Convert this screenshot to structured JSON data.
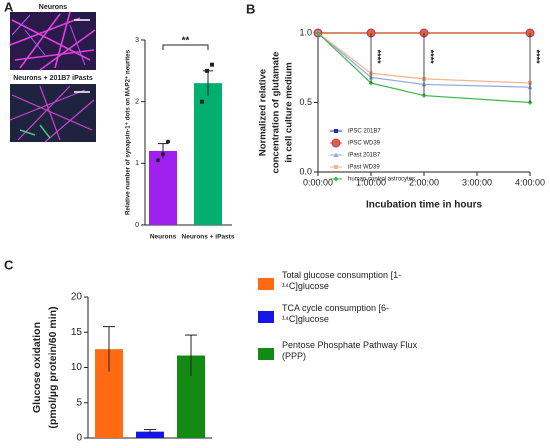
{
  "panel_labels": [
    "A",
    "B",
    "C"
  ],
  "image_labels": [
    "Neurons",
    "Neurons + 201B7 iPasts"
  ],
  "chart_data": [
    {
      "type": "bar",
      "ylabel": "Relative number of synapsin-1⁺ dots on MAP2⁺ neurites",
      "categories": [
        "Neurons",
        "Neurons + iPasts"
      ],
      "values": [
        1.2,
        2.3
      ],
      "errors": [
        0.12,
        0.2
      ],
      "colors": [
        "#a020f0",
        "#00b070"
      ],
      "points": [
        [
          1.05,
          1.15,
          1.35
        ],
        [
          2.0,
          2.5,
          2.6
        ]
      ],
      "annotation": "**",
      "ylim": [
        0,
        3
      ],
      "yticks": [
        0,
        1,
        2,
        3
      ]
    },
    {
      "type": "line",
      "xlabel": "Incubation time in hours",
      "ylabel": [
        "Normalized relative",
        "concentration of glutamate",
        "in cell culture medium"
      ],
      "x": [
        0,
        1,
        2,
        4
      ],
      "series": [
        {
          "name": "iPSC 201B7",
          "color": "#1f2fb0",
          "marker": "square",
          "values": [
            1.0,
            1.0,
            1.0,
            1.0
          ]
        },
        {
          "name": "iPSC WD39",
          "color": "#e8641e",
          "marker": "circle",
          "values": [
            1.0,
            1.0,
            1.0,
            1.0
          ]
        },
        {
          "name": "iPast 201B7",
          "color": "#8fa8e0",
          "marker": "triangle",
          "values": [
            1.0,
            0.68,
            0.63,
            0.61
          ]
        },
        {
          "name": "iPast WD39",
          "color": "#f2b48a",
          "marker": "square",
          "values": [
            1.0,
            0.71,
            0.67,
            0.64
          ]
        },
        {
          "name": "human control astrocytes",
          "color": "#3cb44b",
          "marker": "diamond",
          "values": [
            1.0,
            0.64,
            0.55,
            0.5
          ]
        }
      ],
      "annotations": [
        "****",
        "****",
        "****"
      ],
      "xlim": [
        0,
        4
      ],
      "xticks": [
        {
          "value": 0,
          "label": "0:00:00"
        },
        {
          "value": 1,
          "label": "1:00:00"
        },
        {
          "value": 2,
          "label": "2:00:00"
        },
        {
          "value": 3,
          "label": "3:00:00"
        },
        {
          "value": 4,
          "label": "4:00:00"
        }
      ],
      "ylim": [
        0,
        1
      ],
      "yticks": [
        {
          "value": 0,
          "label": "0.0"
        },
        {
          "value": 0.5,
          "label": "0.5"
        },
        {
          "value": 1,
          "label": "1.0"
        }
      ]
    },
    {
      "type": "bar",
      "ylabel": [
        "Glucose oxidation",
        "(pmol/µg protein/60 min)"
      ],
      "series": [
        {
          "name": "Total glucose consumption [1-¹⁴C]glucose",
          "color": "#ff6a13",
          "values": [
            12.6
          ],
          "errors": [
            3.2
          ]
        },
        {
          "name": "TCA cycle consumption [6-¹⁴C]glucose",
          "color": "#1515e6",
          "values": [
            0.9
          ],
          "errors": [
            0.3
          ]
        },
        {
          "name": "Pentose Phosphate Pathway Flux (PPP)",
          "color": "#138a13",
          "values": [
            11.7
          ],
          "errors": [
            2.9
          ]
        }
      ],
      "ylim": [
        0,
        20
      ],
      "yticks": [
        0,
        5,
        10,
        15,
        20
      ]
    }
  ]
}
